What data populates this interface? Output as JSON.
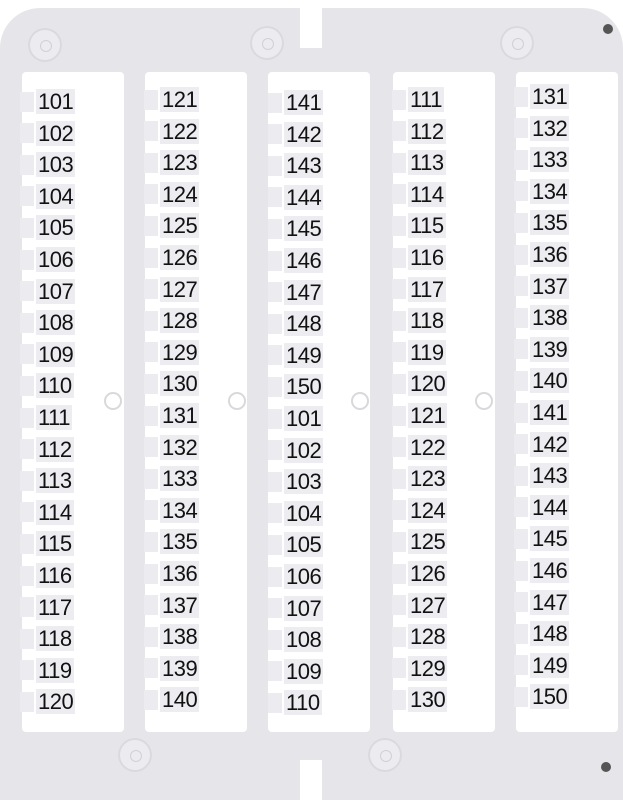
{
  "columns": [
    {
      "labels": [
        "101",
        "102",
        "103",
        "104",
        "105",
        "106",
        "107",
        "108",
        "109",
        "110",
        "111",
        "112",
        "113",
        "114",
        "115",
        "116",
        "117",
        "118",
        "119",
        "120"
      ]
    },
    {
      "labels": [
        "121",
        "122",
        "123",
        "124",
        "125",
        "126",
        "127",
        "128",
        "129",
        "130",
        "131",
        "132",
        "133",
        "134",
        "135",
        "136",
        "137",
        "138",
        "139",
        "140"
      ]
    },
    {
      "labels": [
        "141",
        "142",
        "143",
        "144",
        "145",
        "146",
        "147",
        "148",
        "149",
        "150",
        "101",
        "102",
        "103",
        "104",
        "105",
        "106",
        "107",
        "108",
        "109",
        "110"
      ]
    },
    {
      "labels": [
        "111",
        "112",
        "113",
        "114",
        "115",
        "116",
        "117",
        "118",
        "119",
        "120",
        "121",
        "122",
        "123",
        "124",
        "125",
        "126",
        "127",
        "128",
        "129",
        "130"
      ]
    },
    {
      "labels": [
        "131",
        "132",
        "133",
        "134",
        "135",
        "136",
        "137",
        "138",
        "139",
        "140",
        "141",
        "142",
        "143",
        "144",
        "145",
        "146",
        "147",
        "148",
        "149",
        "150"
      ]
    }
  ],
  "colors": {
    "frame": "#e6e6ea",
    "label": "#ededf1",
    "text": "#111111"
  }
}
